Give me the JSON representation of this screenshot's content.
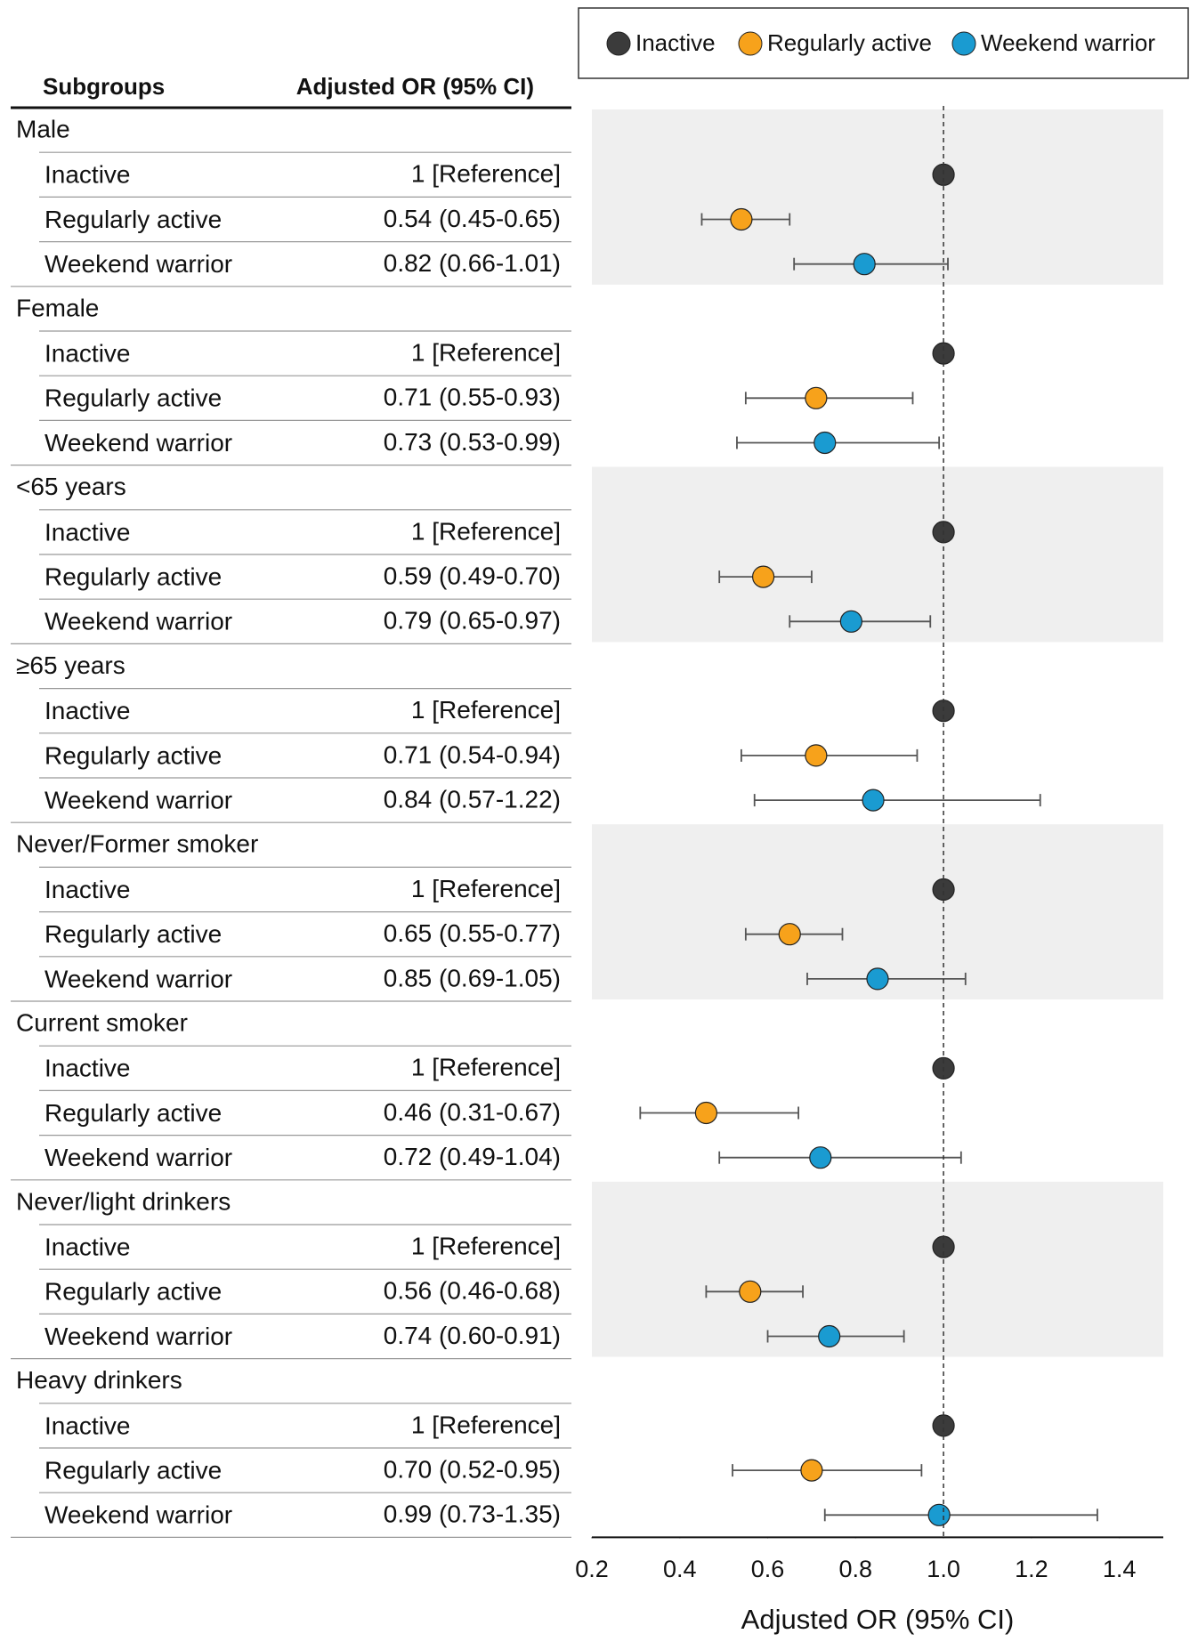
{
  "chart_data": {
    "type": "forest",
    "columns": [
      "Subgroups",
      "Adjusted OR (95% CI)"
    ],
    "groups": [
      "Male",
      "Female",
      "<65 years",
      "≥65 years",
      "Never/Former smoker",
      "Current smoker",
      "Never/light drinkers",
      "Heavy drinkers"
    ],
    "series": [
      {
        "name": "Inactive",
        "color": "#3b3b3b",
        "values": [
          1,
          1,
          1,
          1,
          1,
          1,
          1,
          1
        ],
        "value_labels": [
          "1 [Reference]",
          "1 [Reference]",
          "1 [Reference]",
          "1 [Reference]",
          "1 [Reference]",
          "1 [Reference]",
          "1 [Reference]",
          "1 [Reference]"
        ]
      },
      {
        "name": "Regularly active",
        "color": "#f7a21b",
        "values": [
          0.54,
          0.71,
          0.59,
          0.71,
          0.65,
          0.46,
          0.56,
          0.7
        ],
        "lo": [
          0.45,
          0.55,
          0.49,
          0.54,
          0.55,
          0.31,
          0.46,
          0.52
        ],
        "hi": [
          0.65,
          0.93,
          0.7,
          0.94,
          0.77,
          0.67,
          0.68,
          0.95
        ],
        "value_labels": [
          "0.54 (0.45-0.65)",
          "0.71 (0.55-0.93)",
          "0.59 (0.49-0.70)",
          "0.71 (0.54-0.94)",
          "0.65 (0.55-0.77)",
          "0.46 (0.31-0.67)",
          "0.56 (0.46-0.68)",
          "0.70 (0.52-0.95)"
        ]
      },
      {
        "name": "Weekend warrior",
        "color": "#1a9bd1",
        "values": [
          0.82,
          0.73,
          0.79,
          0.84,
          0.85,
          0.72,
          0.74,
          0.99
        ],
        "lo": [
          0.66,
          0.53,
          0.65,
          0.57,
          0.69,
          0.49,
          0.6,
          0.73
        ],
        "hi": [
          1.01,
          0.99,
          0.97,
          1.22,
          1.05,
          1.04,
          0.91,
          1.35
        ],
        "value_labels": [
          "0.82 (0.66-1.01)",
          "0.73 (0.53-0.99)",
          "0.79 (0.65-0.97)",
          "0.84 (0.57-1.22)",
          "0.85 (0.69-1.05)",
          "0.72 (0.49-1.04)",
          "0.74 (0.60-0.91)",
          "0.99 (0.73-1.35)"
        ]
      }
    ],
    "xlabel": "Adjusted OR (95% CI)",
    "xlim": [
      0.2,
      1.5
    ],
    "xticks": [
      0.2,
      0.4,
      0.6,
      0.8,
      {
        "value": 1,
        "label": "1.0"
      },
      1.2,
      1.4
    ],
    "reference_line": 1
  }
}
